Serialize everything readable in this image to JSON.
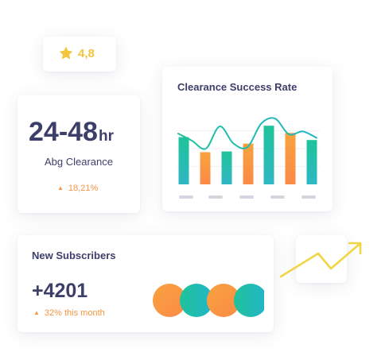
{
  "rating": {
    "value": "4,8",
    "icon": "star-icon"
  },
  "clearance": {
    "value": "24-48",
    "unit": "hr",
    "label": "Abg Clearance",
    "trend": "18,21%",
    "trend_icon": "triangle-up-icon"
  },
  "success_rate": {
    "title": "Clearance Success Rate"
  },
  "subscribers": {
    "title": "New Subscribers",
    "value": "+4201",
    "trend": "32% this month",
    "trend_icon": "triangle-up-icon",
    "avatar_count": 4
  },
  "colors": {
    "text": "#3d3f6b",
    "accent_orange": "#f39640",
    "accent_green": "#1fc39a",
    "accent_teal": "#22b5c9",
    "star": "#f2c53d",
    "axis_pill": "#d3d5df"
  },
  "chart_data": {
    "type": "bar",
    "title": "Clearance Success Rate",
    "categories": [
      "",
      "",
      "",
      "",
      "",
      "",
      ""
    ],
    "series": [
      {
        "values": [
          66,
          45,
          46,
          57,
          82,
          72,
          62
        ]
      }
    ],
    "trend_line": [
      71,
      61,
      50,
      81,
      57,
      52,
      85,
      92,
      70,
      74,
      65
    ],
    "ylim": [
      0,
      100
    ],
    "grid": true,
    "legend": "none"
  }
}
